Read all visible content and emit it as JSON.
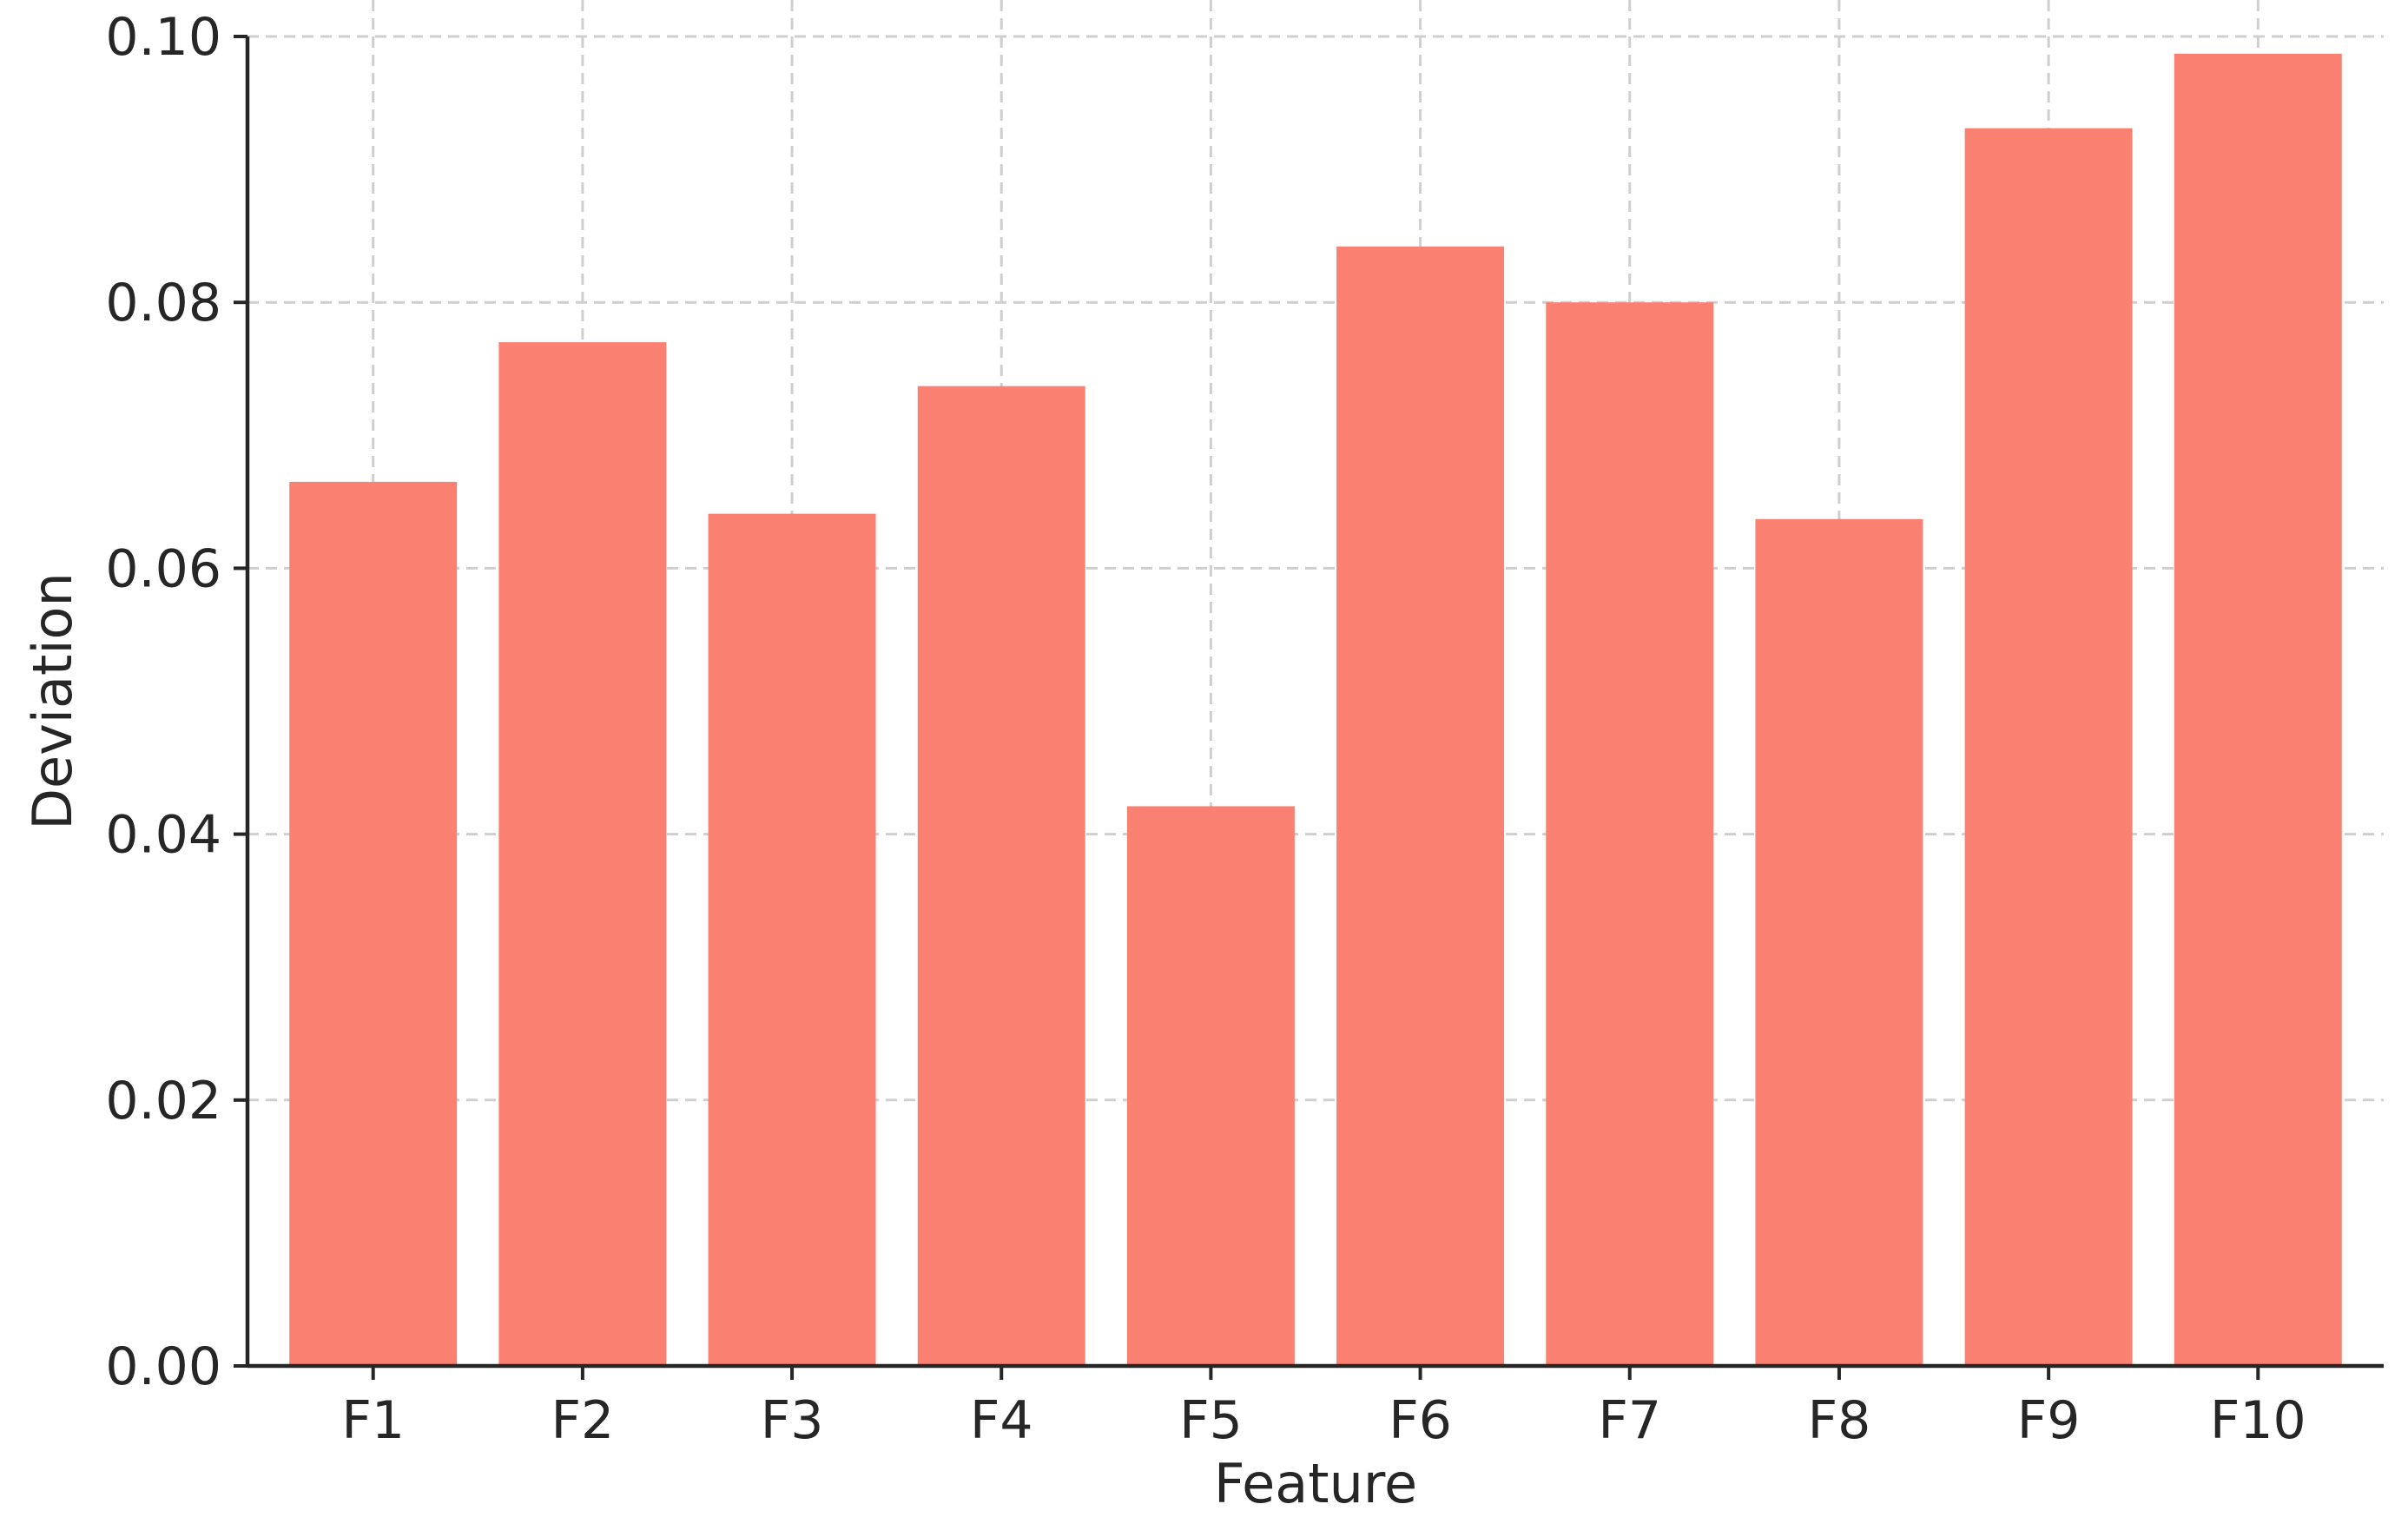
{
  "chart_data": {
    "type": "bar",
    "title": "",
    "xlabel": "Feature",
    "ylabel": "Deviation",
    "categories": [
      "F1",
      "F2",
      "F3",
      "F4",
      "F5",
      "F6",
      "F7",
      "F8",
      "F9",
      "F10"
    ],
    "values": [
      0.0665,
      0.077,
      0.0641,
      0.0737,
      0.0421,
      0.0842,
      0.08,
      0.0637,
      0.0931,
      0.0987
    ],
    "ylim": [
      0,
      0.1
    ],
    "yticks": [
      "0.00",
      "0.02",
      "0.04",
      "0.06",
      "0.08",
      "0.10"
    ],
    "grid": true,
    "legend": "none",
    "colors": {
      "bar": "#fa8072",
      "grid": "#cfcfcf",
      "axis": "#262626"
    }
  }
}
